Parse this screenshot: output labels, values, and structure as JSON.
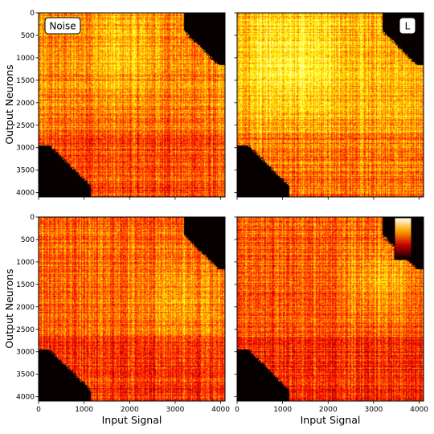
{
  "chart_data": {
    "type": "heatmap",
    "colormap": "hot",
    "shared_axes": {
      "xlabel": "Input Signal",
      "ylabel": "Output Neurons",
      "xlim": [
        0,
        4096
      ],
      "ylim": [
        4096,
        0
      ],
      "x_ticks": [
        0,
        1000,
        2000,
        3000,
        4000
      ],
      "y_ticks": [
        0,
        500,
        1000,
        1500,
        2000,
        2500,
        3000,
        3500,
        4000
      ]
    },
    "panels": [
      {
        "position": "top-left",
        "label": "Noise",
        "label_placement": "top-left",
        "masked_corners": [
          "top-right",
          "bottom-left"
        ],
        "background_level": 0.55,
        "bright_region": "upper-middle"
      },
      {
        "position": "top-right",
        "label": "L",
        "label_placement": "top-right",
        "masked_corners": [
          "top-right",
          "bottom-left"
        ],
        "background_level": 0.62,
        "bright_region": "upper-left"
      },
      {
        "position": "bottom-left",
        "label": "",
        "label_placement": "",
        "masked_corners": [
          "top-right",
          "bottom-left"
        ],
        "background_level": 0.5,
        "bright_region": "right-middle"
      },
      {
        "position": "bottom-right",
        "label": "",
        "label_placement": "",
        "masked_corners": [
          "top-right",
          "bottom-left"
        ],
        "background_level": 0.5,
        "bright_region": "center-right",
        "colorbar": true
      }
    ]
  }
}
